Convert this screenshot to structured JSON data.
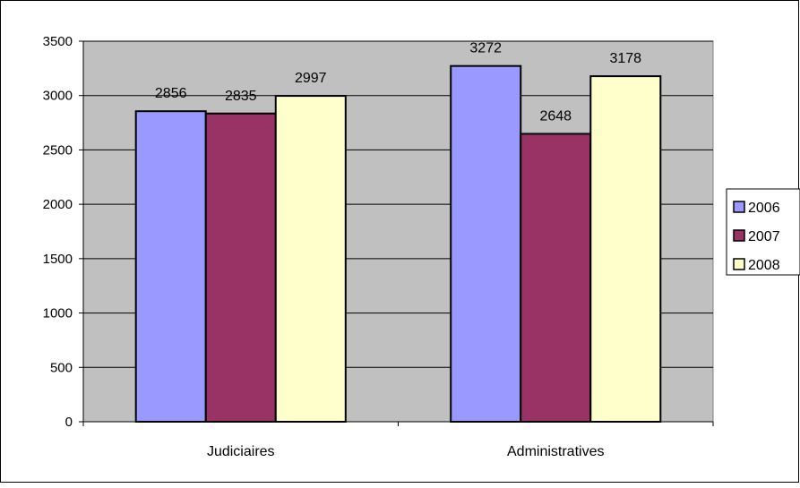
{
  "chart_data": {
    "type": "bar",
    "categories": [
      "Judiciaires",
      "Administratives"
    ],
    "series": [
      {
        "name": "2006",
        "values": [
          2856,
          3272
        ],
        "color": "#9999ff"
      },
      {
        "name": "2007",
        "values": [
          2835,
          2648
        ],
        "color": "#993366"
      },
      {
        "name": "2008",
        "values": [
          2997,
          3178
        ],
        "color": "#ffffcc"
      }
    ],
    "title": "",
    "xlabel": "",
    "ylabel": "",
    "ylim": [
      0,
      3500
    ],
    "yticks": [
      0,
      500,
      1000,
      1500,
      2000,
      2500,
      3000,
      3500
    ],
    "grid": true,
    "legend_position": "right",
    "data_labels": true,
    "plot_background": "#c0c0c0"
  }
}
